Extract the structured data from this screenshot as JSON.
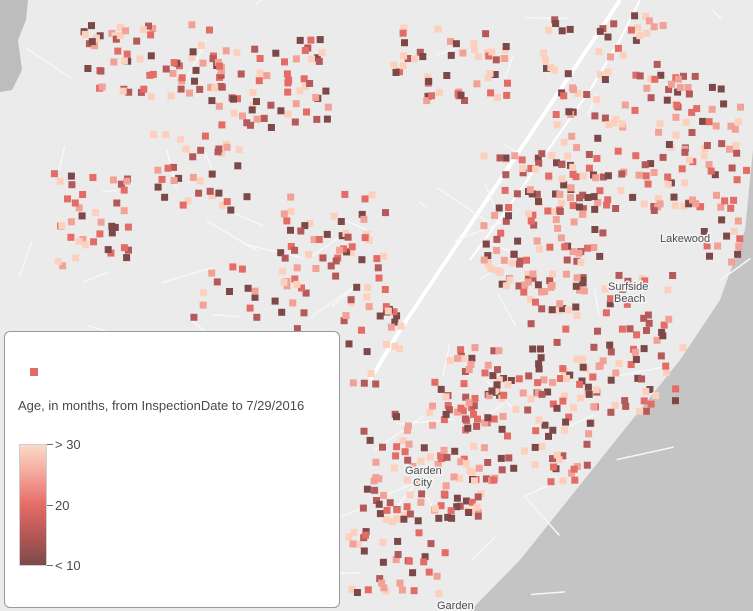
{
  "map": {
    "place_labels": [
      "Lakewood",
      "Surfside",
      "Beach",
      "Garden",
      "City",
      "Garden"
    ],
    "colors": {
      "land": "#e9e9e9",
      "road": "#ffffff",
      "water": "#b9b9b9",
      "class_high": "#fcd0bd",
      "class_mid_high": "#f2a196",
      "class_mid": "#e46c66",
      "class_mid_low": "#b55a5a",
      "class_low": "#7c4848"
    }
  },
  "legend": {
    "title": "Age, in months, from InspectionDate to 7/29/2016",
    "ramp_labels": {
      "high": "> 30",
      "mid": "20",
      "low": "< 10"
    }
  }
}
